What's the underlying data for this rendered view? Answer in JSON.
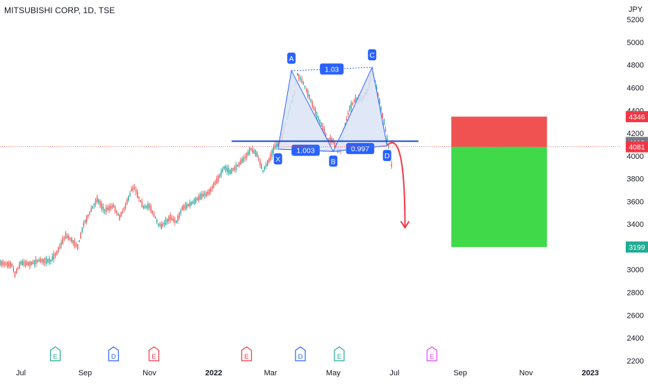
{
  "header": {
    "title": "MITSUBISHI CORP, 1D, TSE",
    "currency": "JPY"
  },
  "colors": {
    "up": "#26a69a",
    "down": "#ef5350",
    "pattern_line": "#2962ff",
    "pattern_fill": "#dbe4f6",
    "arrow": "#f23645",
    "stop_zone": "#f05252",
    "target_zone": "#40d94a",
    "price_line": "#ef5350",
    "axis_text": "#131722"
  },
  "chart_data": {
    "type": "candlestick",
    "title": "MITSUBISHI CORP, 1D, TSE",
    "ylabel": "JPY",
    "ylim": [
      2150,
      5250
    ],
    "y_ticks": [
      5200,
      5000,
      4800,
      4600,
      4400,
      4200,
      4000,
      3800,
      3600,
      3400,
      3200,
      3000,
      2800,
      2600,
      2400,
      2200
    ],
    "x_ticks": [
      {
        "label": "Jul",
        "bar": 14
      },
      {
        "label": "Sep",
        "bar": 57
      },
      {
        "label": "Nov",
        "bar": 100
      },
      {
        "label": "2022",
        "bar": 143
      },
      {
        "label": "Mar",
        "bar": 181
      },
      {
        "label": "May",
        "bar": 223
      },
      {
        "label": "Jul",
        "bar": 264
      },
      {
        "label": "Sep",
        "bar": 308
      },
      {
        "label": "Nov",
        "bar": 352
      },
      {
        "label": "2023",
        "bar": 395
      }
    ],
    "bar_range": [
      0,
      415
    ],
    "price_path": [
      [
        0,
        3060
      ],
      [
        8,
        3040
      ],
      [
        10,
        2960
      ],
      [
        14,
        3060
      ],
      [
        20,
        3050
      ],
      [
        26,
        3080
      ],
      [
        34,
        3080
      ],
      [
        38,
        3150
      ],
      [
        44,
        3300
      ],
      [
        48,
        3260
      ],
      [
        52,
        3200
      ],
      [
        56,
        3400
      ],
      [
        60,
        3500
      ],
      [
        65,
        3620
      ],
      [
        70,
        3520
      ],
      [
        76,
        3560
      ],
      [
        80,
        3460
      ],
      [
        84,
        3560
      ],
      [
        88,
        3700
      ],
      [
        90,
        3720
      ],
      [
        92,
        3660
      ],
      [
        96,
        3550
      ],
      [
        100,
        3560
      ],
      [
        104,
        3460
      ],
      [
        106,
        3400
      ],
      [
        108,
        3380
      ],
      [
        114,
        3460
      ],
      [
        118,
        3420
      ],
      [
        122,
        3540
      ],
      [
        128,
        3580
      ],
      [
        134,
        3640
      ],
      [
        140,
        3680
      ],
      [
        146,
        3800
      ],
      [
        150,
        3900
      ],
      [
        154,
        3860
      ],
      [
        158,
        3900
      ],
      [
        163,
        3970
      ],
      [
        168,
        4060
      ],
      [
        172,
        4010
      ],
      [
        176,
        3870
      ],
      [
        180,
        3960
      ],
      [
        184,
        4080
      ],
      [
        188,
        4130
      ],
      [
        193,
        4380
      ],
      [
        197,
        4560
      ],
      [
        199,
        4720
      ],
      [
        203,
        4640
      ],
      [
        207,
        4520
      ],
      [
        212,
        4360
      ],
      [
        216,
        4250
      ],
      [
        219,
        4150
      ],
      [
        223,
        4130
      ],
      [
        226,
        4050
      ],
      [
        228,
        4060
      ],
      [
        230,
        4220
      ],
      [
        234,
        4420
      ],
      [
        238,
        4500
      ],
      [
        242,
        4500
      ],
      [
        246,
        4580
      ],
      [
        249,
        4730
      ],
      [
        251,
        4650
      ],
      [
        254,
        4480
      ],
      [
        257,
        4300
      ],
      [
        260,
        4080
      ],
      [
        262,
        3920
      ]
    ],
    "up_ratio": 0.5,
    "volatility": 42,
    "wick": 28,
    "pattern": {
      "name": "bearish harmonic",
      "points": [
        {
          "label": "X",
          "bar": 186,
          "price": 4060
        },
        {
          "label": "A",
          "bar": 195,
          "price": 4750
        },
        {
          "label": "B",
          "bar": 223,
          "price": 4040
        },
        {
          "label": "C",
          "bar": 249,
          "price": 4780
        },
        {
          "label": "D",
          "bar": 259,
          "price": 4090
        }
      ],
      "ratios": [
        {
          "label": "1.03",
          "between": [
            "A",
            "C"
          ]
        },
        {
          "label": "1.003",
          "between": [
            "X",
            "B"
          ]
        },
        {
          "label": "0.997",
          "between": [
            "B",
            "D"
          ]
        }
      ]
    },
    "neckline": {
      "price": 4130,
      "from_bar": 155,
      "to_bar": 280
    },
    "forecast_arrow": {
      "from_bar": 262,
      "from_price": 4120,
      "to_bar": 271,
      "to_price": 3370
    },
    "position": {
      "entry": 4081,
      "stop": 4346,
      "target": 3199,
      "from_bar": 302,
      "to_bar": 366
    },
    "current_price": 4119,
    "price_labels": [
      {
        "label": "4346",
        "price": 4346,
        "color": "#f23645"
      },
      {
        "label": "4119",
        "price": 4119,
        "color": "#787b86"
      },
      {
        "label": "4081",
        "price": 4081,
        "color": "#f23645"
      },
      {
        "label": "3199",
        "price": 3199,
        "color": "#22ab94"
      }
    ],
    "events": [
      {
        "label": "E",
        "bar": 37,
        "color": "#22ab94"
      },
      {
        "label": "D",
        "bar": 76,
        "color": "#2962ff"
      },
      {
        "label": "E",
        "bar": 103,
        "color": "#f23645"
      },
      {
        "label": "E",
        "bar": 165,
        "color": "#f23645"
      },
      {
        "label": "D",
        "bar": 201,
        "color": "#2962ff"
      },
      {
        "label": "E",
        "bar": 227,
        "color": "#22ab94"
      },
      {
        "label": "E",
        "bar": 289,
        "color": "#e040fb"
      }
    ]
  }
}
